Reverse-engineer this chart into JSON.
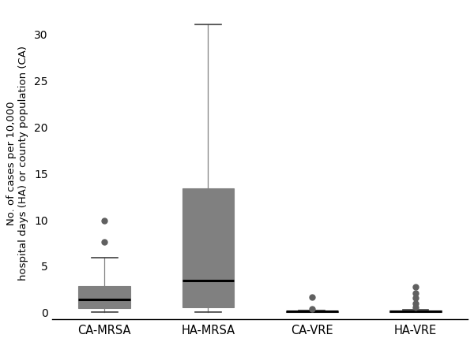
{
  "categories": [
    "CA-MRSA",
    "HA-MRSA",
    "CA-VRE",
    "HA-VRE"
  ],
  "box_stats": {
    "CA-MRSA": {
      "med": 1.3,
      "q1": 0.4,
      "q3": 2.8,
      "whislo": 0.0,
      "whishi": 5.8,
      "fliers": [
        7.5,
        9.8
      ]
    },
    "HA-MRSA": {
      "med": 3.4,
      "q1": 0.5,
      "q3": 13.3,
      "whislo": 0.0,
      "whishi": 31.0,
      "fliers": []
    },
    "CA-VRE": {
      "med": 0.05,
      "q1": 0.0,
      "q3": 0.1,
      "whislo": 0.0,
      "whishi": 0.15,
      "fliers": [
        0.35,
        1.6
      ]
    },
    "HA-VRE": {
      "med": 0.05,
      "q1": 0.0,
      "q3": 0.15,
      "whislo": 0.0,
      "whishi": 0.2,
      "fliers": [
        0.5,
        0.9,
        1.5,
        2.0,
        2.7
      ]
    }
  },
  "box_color": "#808080",
  "median_color": "#000000",
  "whisker_color": "#808080",
  "cap_color": "#404040",
  "flier_color": "#606060",
  "ylabel_line1": "No. of cases per 10,000",
  "ylabel_line2": "hospital days (HA) or county population (CA)",
  "ylim": [
    -0.8,
    33
  ],
  "yticks": [
    0,
    5,
    10,
    15,
    20,
    25,
    30
  ],
  "background_color": "#ffffff",
  "box_width": 0.5
}
